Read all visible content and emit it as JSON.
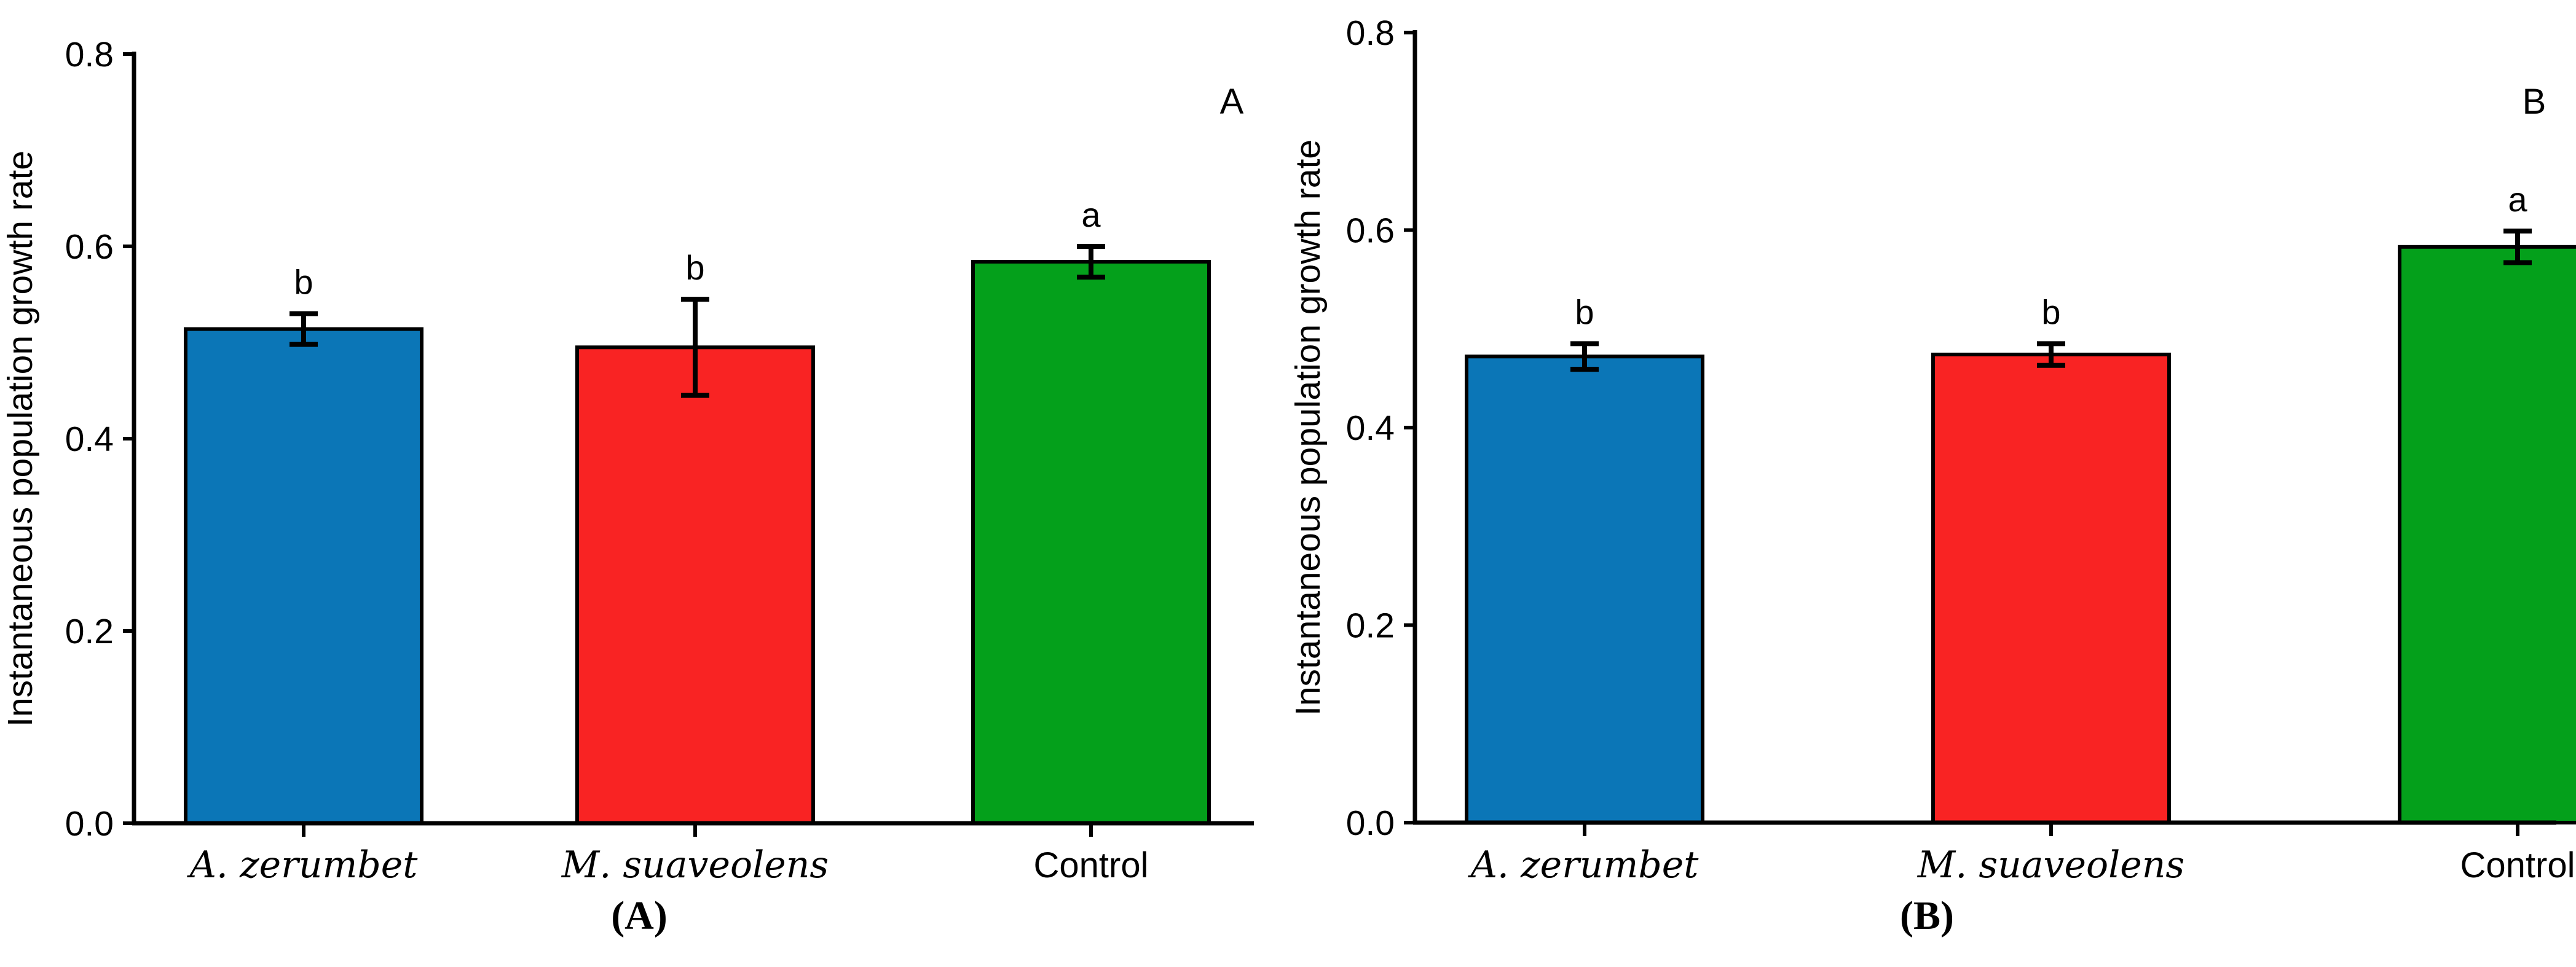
{
  "figure": {
    "background": "#ffffff",
    "text_color": "#000000"
  },
  "chart_data": [
    {
      "type": "bar",
      "panel_label": "A",
      "caption": "(A)",
      "title": "",
      "xlabel": "",
      "ylabel": "Instantaneous population growth rate",
      "ylim": [
        0.0,
        0.8
      ],
      "yticks": [
        "0.0",
        "0.2",
        "0.4",
        "0.6",
        "0.8"
      ],
      "ytick_values": [
        0.0,
        0.2,
        0.4,
        0.6,
        0.8
      ],
      "categories": [
        "A. zerumbet",
        "M. suaveolens",
        "Control"
      ],
      "category_styles": [
        "italic-serif",
        "italic-serif",
        "sans"
      ],
      "values": [
        0.514,
        0.495,
        0.584
      ],
      "errors": [
        0.016,
        0.05,
        0.016
      ],
      "sig_letters": [
        "b",
        "b",
        "a"
      ],
      "bar_colors": [
        "#0b76b7",
        "#f92323",
        "#04a01b"
      ],
      "bar_outline": "#000000",
      "error_color": "#000000",
      "grid": false,
      "legend": "none"
    },
    {
      "type": "bar",
      "panel_label": "B",
      "caption": "(B)",
      "title": "",
      "xlabel": "",
      "ylabel": "Instantaneous population growth rate",
      "ylim": [
        0.0,
        0.8
      ],
      "yticks": [
        "0.0",
        "0.2",
        "0.4",
        "0.6",
        "0.8"
      ],
      "ytick_values": [
        0.0,
        0.2,
        0.4,
        0.6,
        0.8
      ],
      "categories": [
        "A. zerumbet",
        "M. suaveolens",
        "Control"
      ],
      "category_styles": [
        "italic-serif",
        "italic-serif",
        "sans"
      ],
      "values": [
        0.472,
        0.474,
        0.583
      ],
      "errors": [
        0.013,
        0.011,
        0.016
      ],
      "sig_letters": [
        "b",
        "b",
        "a"
      ],
      "bar_colors": [
        "#0b76b7",
        "#f92323",
        "#04a01b"
      ],
      "bar_outline": "#000000",
      "error_color": "#000000",
      "grid": false,
      "legend": "none"
    }
  ]
}
